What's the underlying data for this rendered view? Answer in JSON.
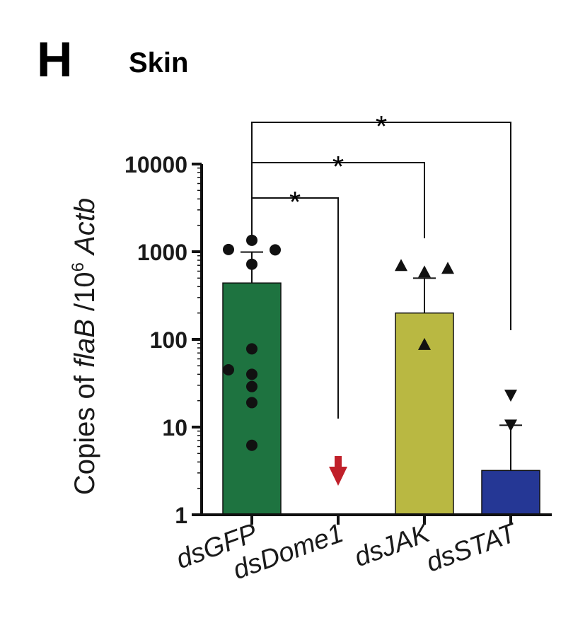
{
  "panel": {
    "letter": "H",
    "title": "Skin"
  },
  "chart_data": {
    "type": "bar",
    "y_scale": "log10",
    "ylim": [
      1,
      10000
    ],
    "yticks": [
      1,
      10,
      100,
      1000,
      10000
    ],
    "ytick_labels": [
      "1",
      "10",
      "100",
      "1000",
      "10000"
    ],
    "ylabel": {
      "prefix": "Copies of ",
      "gene": "flaB",
      "mid": " /10",
      "exponent": "6",
      "suffix_space": " ",
      "reference": "Actb"
    },
    "xlabel": "",
    "categories": [
      "dsGFP",
      "dsDome1",
      "dsJAK",
      "dsSTAT"
    ],
    "bar_colors": [
      "#1e7340",
      "#ffffff",
      "#b9b842",
      "#253795"
    ],
    "marker_shapes": [
      "circle",
      "none",
      "triangle-up",
      "triangle-down"
    ],
    "bars": [
      {
        "category": "dsGFP",
        "mean": 440,
        "error_upper": 990,
        "points": [
          1060,
          1350,
          1050,
          720,
          78,
          45,
          40,
          29,
          19,
          6.2
        ]
      },
      {
        "category": "dsDome1",
        "mean": null,
        "error_upper": null,
        "points": [],
        "below_detection_arrow": true,
        "arrow_color": "#c0202a"
      },
      {
        "category": "dsJAK",
        "mean": 200,
        "error_upper": 500,
        "points": [
          700,
          590,
          650,
          88
        ]
      },
      {
        "category": "dsSTAT",
        "mean": 3.2,
        "error_upper": 10.5,
        "points": [
          23,
          10.5
        ]
      }
    ],
    "significance": [
      {
        "from": "dsGFP",
        "to": "dsDome1",
        "label": "*"
      },
      {
        "from": "dsGFP",
        "to": "dsJAK",
        "label": "*"
      },
      {
        "from": "dsGFP",
        "to": "dsSTAT",
        "label": "*"
      }
    ]
  }
}
